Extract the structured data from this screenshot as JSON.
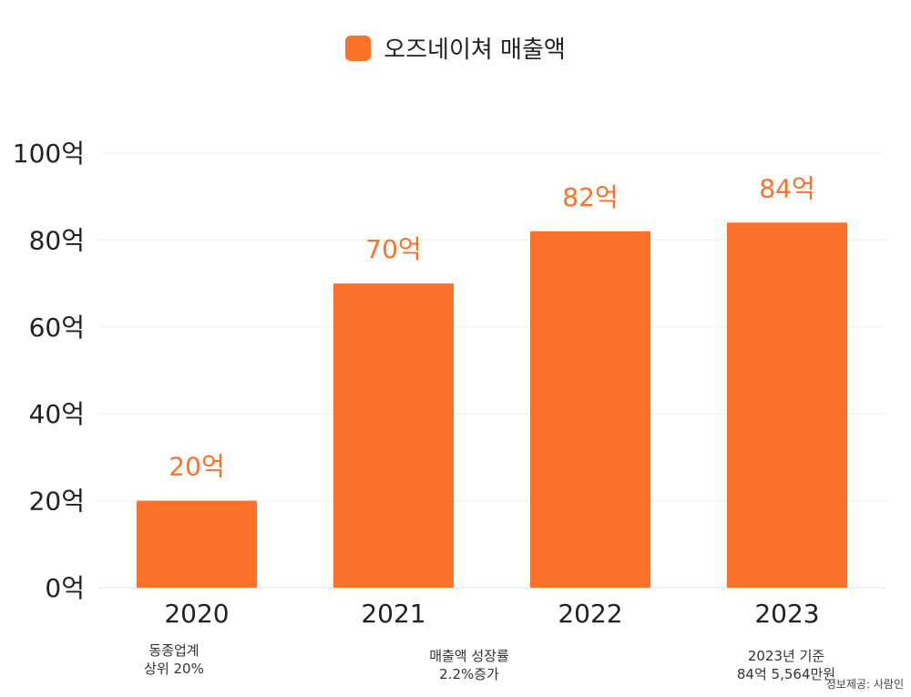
{
  "chart_data": {
    "type": "bar",
    "legend": "오즈네이쳐 매출액",
    "series": [
      {
        "name": "오즈네이쳐 매출액",
        "values": [
          20,
          70,
          82,
          84
        ]
      }
    ],
    "categories": [
      "2020",
      "2021",
      "2022",
      "2023"
    ],
    "values": [
      20,
      70,
      82,
      84
    ],
    "data_labels": [
      "20억",
      "70억",
      "82억",
      "84억"
    ],
    "yticks": [
      "0억",
      "20억",
      "40억",
      "60억",
      "80억",
      "100억"
    ],
    "ylim": [
      0,
      100
    ],
    "grid": true,
    "bar_color": "#fc7128",
    "label_color": "#fc7128",
    "legend_placement": "top-center"
  },
  "notes": [
    {
      "category": "2020",
      "text": "동종업계\n상위 20%"
    },
    {
      "category": "2021.5",
      "text": "매출액 성장률\n2.2%증가"
    },
    {
      "category": "2023",
      "text": "2023년 기준\n84억 5,564만원"
    }
  ],
  "source": "정보제공: 사람인"
}
